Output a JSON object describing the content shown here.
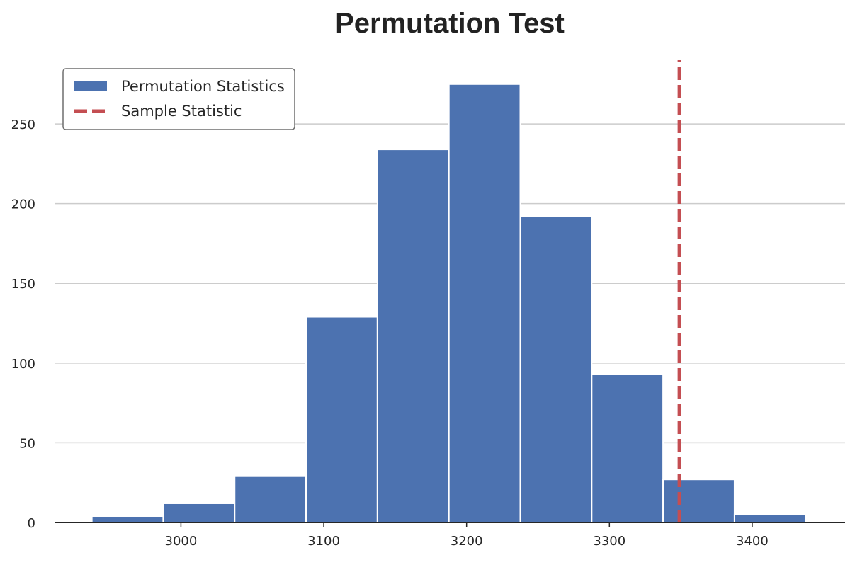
{
  "chart_data": {
    "type": "bar",
    "subtype": "histogram",
    "title": "Permutation Test",
    "xlabel": "",
    "ylabel": "",
    "bins": [
      {
        "start": 2937.6,
        "end": 2987.6,
        "count": 4
      },
      {
        "start": 2987.6,
        "end": 3037.6,
        "count": 12
      },
      {
        "start": 3037.6,
        "end": 3087.6,
        "count": 29
      },
      {
        "start": 3087.6,
        "end": 3137.6,
        "count": 129
      },
      {
        "start": 3137.6,
        "end": 3187.6,
        "count": 234
      },
      {
        "start": 3187.6,
        "end": 3237.6,
        "count": 275
      },
      {
        "start": 3237.6,
        "end": 3287.6,
        "count": 192
      },
      {
        "start": 3287.6,
        "end": 3337.6,
        "count": 93
      },
      {
        "start": 3337.6,
        "end": 3387.6,
        "count": 27
      },
      {
        "start": 3387.6,
        "end": 3437.6,
        "count": 5
      }
    ],
    "sample_statistic": 3349,
    "xlim": [
      2912,
      3465
    ],
    "ylim": [
      0,
      290
    ],
    "xticks": [
      3000,
      3100,
      3200,
      3300,
      3400
    ],
    "yticks": [
      0,
      50,
      100,
      150,
      200,
      250
    ],
    "grid": "horizontal",
    "legend_position": "top-left",
    "legend": [
      {
        "label": "Permutation Statistics",
        "kind": "bar"
      },
      {
        "label": "Sample Statistic",
        "kind": "dashed-line"
      }
    ],
    "colors": {
      "bars": "#4c72b0",
      "sample_line": "#c44e52",
      "grid": "#cccccc",
      "axis": "#262626"
    }
  }
}
